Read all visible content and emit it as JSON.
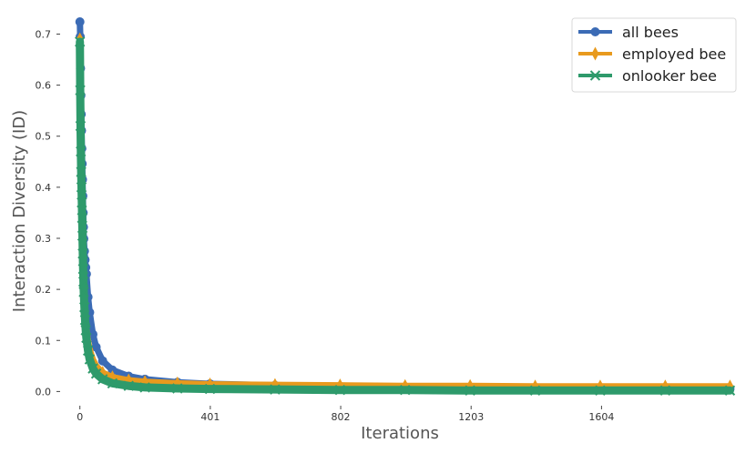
{
  "chart_data": {
    "type": "line",
    "title": "",
    "xlabel": "Iterations",
    "ylabel": "Interaction Diversity (ID)",
    "xlim": [
      -30,
      1995
    ],
    "ylim": [
      -0.01,
      0.74
    ],
    "x_ticks": [
      0,
      401,
      802,
      1203,
      1604
    ],
    "x_tick_labels": [
      "0",
      "401",
      "802",
      "1203",
      "1604"
    ],
    "y_ticks": [
      0.0,
      0.1,
      0.2,
      0.3,
      0.4,
      0.5,
      0.6,
      0.7
    ],
    "y_tick_labels": [
      "0.0",
      "0.1",
      "0.2",
      "0.3",
      "0.4",
      "0.5",
      "0.6",
      "0.7"
    ],
    "grid": false,
    "legend_position": "top-right",
    "series": [
      {
        "name": "all bees",
        "color": "#3b6bb5",
        "marker": "circle",
        "x": [
          0,
          1,
          2,
          3,
          4,
          5,
          6,
          7,
          8,
          9,
          10,
          11,
          12,
          14,
          16,
          18,
          20,
          25,
          30,
          40,
          50,
          70,
          100,
          150,
          200,
          300,
          400,
          600,
          800,
          1000,
          1200,
          1400,
          1600,
          1800,
          1999
        ],
        "y": [
          0.724,
          0.695,
          0.633,
          0.58,
          0.543,
          0.511,
          0.476,
          0.446,
          0.415,
          0.383,
          0.35,
          0.322,
          0.299,
          0.275,
          0.258,
          0.243,
          0.23,
          0.185,
          0.155,
          0.112,
          0.087,
          0.06,
          0.042,
          0.03,
          0.024,
          0.018,
          0.015,
          0.012,
          0.01,
          0.009,
          0.008,
          0.007,
          0.006,
          0.006,
          0.005
        ]
      },
      {
        "name": "employed bee",
        "color": "#e89a1e",
        "marker": "diamond",
        "x": [
          0,
          1,
          2,
          3,
          4,
          5,
          6,
          7,
          8,
          9,
          10,
          11,
          12,
          14,
          16,
          18,
          20,
          25,
          30,
          40,
          50,
          70,
          100,
          150,
          200,
          300,
          400,
          600,
          800,
          1000,
          1200,
          1400,
          1600,
          1800,
          1999
        ],
        "y": [
          0.69,
          0.6,
          0.53,
          0.48,
          0.44,
          0.4,
          0.36,
          0.325,
          0.29,
          0.26,
          0.232,
          0.21,
          0.19,
          0.168,
          0.15,
          0.135,
          0.12,
          0.098,
          0.082,
          0.062,
          0.05,
          0.037,
          0.028,
          0.022,
          0.019,
          0.016,
          0.014,
          0.013,
          0.012,
          0.011,
          0.011,
          0.01,
          0.01,
          0.01,
          0.01
        ]
      },
      {
        "name": "onlooker bee",
        "color": "#2e9a6b",
        "marker": "x",
        "x": [
          0,
          1,
          2,
          3,
          4,
          5,
          6,
          7,
          8,
          9,
          10,
          11,
          12,
          14,
          16,
          18,
          20,
          25,
          30,
          40,
          50,
          70,
          100,
          150,
          200,
          300,
          400,
          600,
          800,
          1000,
          1200,
          1400,
          1600,
          1800,
          1999
        ],
        "y": [
          0.685,
          0.59,
          0.52,
          0.47,
          0.43,
          0.4,
          0.37,
          0.34,
          0.305,
          0.27,
          0.24,
          0.215,
          0.195,
          0.165,
          0.14,
          0.12,
          0.105,
          0.08,
          0.063,
          0.045,
          0.035,
          0.024,
          0.016,
          0.011,
          0.008,
          0.006,
          0.005,
          0.004,
          0.003,
          0.003,
          0.002,
          0.002,
          0.002,
          0.002,
          0.002
        ]
      }
    ]
  }
}
